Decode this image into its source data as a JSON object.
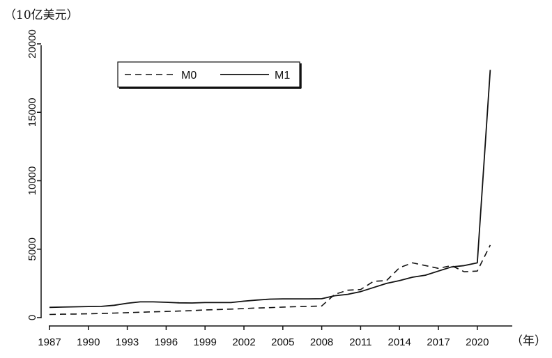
{
  "chart_data": {
    "type": "line",
    "title": "",
    "y_unit_label": "（10亿美元）",
    "x_unit_label": "（年）",
    "xlabel": "",
    "ylabel": "",
    "xlim": [
      1987,
      2022
    ],
    "ylim": [
      0,
      20000
    ],
    "x_ticks": [
      "1987",
      "1990",
      "1993",
      "1996",
      "1999",
      "2002",
      "2005",
      "2008",
      "2011",
      "2014",
      "2017",
      "2020"
    ],
    "y_ticks": [
      "0",
      "5000",
      "10000",
      "15000",
      "20000"
    ],
    "grid": false,
    "legend_position": "top-left",
    "x": [
      1987,
      1988,
      1989,
      1990,
      1991,
      1992,
      1993,
      1994,
      1995,
      1996,
      1997,
      1998,
      1999,
      2000,
      2001,
      2002,
      2003,
      2004,
      2005,
      2006,
      2007,
      2008,
      2009,
      2010,
      2011,
      2012,
      2013,
      2014,
      2015,
      2016,
      2017,
      2018,
      2019,
      2020,
      2021
    ],
    "series": [
      {
        "name": "M0",
        "style": "dashed",
        "color": "#111111",
        "values": [
          230,
          250,
          260,
          280,
          300,
          330,
          360,
          390,
          420,
          450,
          480,
          510,
          560,
          590,
          620,
          660,
          700,
          730,
          770,
          800,
          820,
          850,
          1700,
          2000,
          2050,
          2650,
          2700,
          3650,
          4000,
          3800,
          3600,
          3800,
          3350,
          3400,
          5300
        ]
      },
      {
        "name": "M1",
        "style": "solid",
        "color": "#111111",
        "values": [
          750,
          770,
          790,
          810,
          820,
          900,
          1050,
          1150,
          1150,
          1120,
          1080,
          1070,
          1100,
          1100,
          1100,
          1200,
          1280,
          1350,
          1370,
          1370,
          1370,
          1380,
          1600,
          1700,
          1900,
          2200,
          2500,
          2700,
          2950,
          3100,
          3400,
          3700,
          3800,
          4000,
          18100
        ]
      }
    ]
  }
}
